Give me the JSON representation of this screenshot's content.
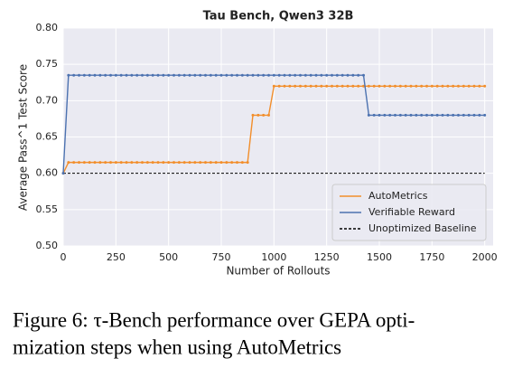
{
  "chart_data": {
    "type": "line",
    "title": "Tau Bench, Qwen3 32B",
    "x_label": "Number of Rollouts",
    "y_label": "Average Pass^1 Test Score",
    "x": [
      0,
      25,
      50,
      75,
      100,
      125,
      150,
      175,
      200,
      225,
      250,
      275,
      300,
      325,
      350,
      375,
      400,
      425,
      450,
      475,
      500,
      525,
      550,
      575,
      600,
      625,
      650,
      675,
      700,
      725,
      750,
      775,
      800,
      825,
      850,
      875,
      900,
      925,
      950,
      975,
      1000,
      1025,
      1050,
      1075,
      1100,
      1125,
      1150,
      1175,
      1200,
      1225,
      1250,
      1275,
      1300,
      1325,
      1350,
      1375,
      1400,
      1425,
      1450,
      1475,
      1500,
      1525,
      1550,
      1575,
      1600,
      1625,
      1650,
      1675,
      1700,
      1725,
      1750,
      1775,
      1800,
      1825,
      1850,
      1875,
      1900,
      1925,
      1950,
      1975,
      2000
    ],
    "series": [
      {
        "name": "AutoMetrics",
        "color": "#f28e2b",
        "values": [
          0.6,
          0.615,
          0.615,
          0.615,
          0.615,
          0.615,
          0.615,
          0.615,
          0.615,
          0.615,
          0.615,
          0.615,
          0.615,
          0.615,
          0.615,
          0.615,
          0.615,
          0.615,
          0.615,
          0.615,
          0.615,
          0.615,
          0.615,
          0.615,
          0.615,
          0.615,
          0.615,
          0.615,
          0.615,
          0.615,
          0.615,
          0.615,
          0.615,
          0.615,
          0.615,
          0.615,
          0.68,
          0.68,
          0.68,
          0.68,
          0.72,
          0.72,
          0.72,
          0.72,
          0.72,
          0.72,
          0.72,
          0.72,
          0.72,
          0.72,
          0.72,
          0.72,
          0.72,
          0.72,
          0.72,
          0.72,
          0.72,
          0.72,
          0.72,
          0.72,
          0.72,
          0.72,
          0.72,
          0.72,
          0.72,
          0.72,
          0.72,
          0.72,
          0.72,
          0.72,
          0.72,
          0.72,
          0.72,
          0.72,
          0.72,
          0.72,
          0.72,
          0.72,
          0.72,
          0.72,
          0.72
        ]
      },
      {
        "name": "Verifiable Reward",
        "color": "#4c72b0",
        "values": [
          0.6,
          0.735,
          0.735,
          0.735,
          0.735,
          0.735,
          0.735,
          0.735,
          0.735,
          0.735,
          0.735,
          0.735,
          0.735,
          0.735,
          0.735,
          0.735,
          0.735,
          0.735,
          0.735,
          0.735,
          0.735,
          0.735,
          0.735,
          0.735,
          0.735,
          0.735,
          0.735,
          0.735,
          0.735,
          0.735,
          0.735,
          0.735,
          0.735,
          0.735,
          0.735,
          0.735,
          0.735,
          0.735,
          0.735,
          0.735,
          0.735,
          0.735,
          0.735,
          0.735,
          0.735,
          0.735,
          0.735,
          0.735,
          0.735,
          0.735,
          0.735,
          0.735,
          0.735,
          0.735,
          0.735,
          0.735,
          0.735,
          0.735,
          0.68,
          0.68,
          0.68,
          0.68,
          0.68,
          0.68,
          0.68,
          0.68,
          0.68,
          0.68,
          0.68,
          0.68,
          0.68,
          0.68,
          0.68,
          0.68,
          0.68,
          0.68,
          0.68,
          0.68,
          0.68,
          0.68,
          0.68
        ]
      }
    ],
    "baseline": {
      "name": "Unoptimized Baseline",
      "value": 0.6,
      "color": "#000000"
    },
    "xlim": [
      0,
      2040
    ],
    "ylim": [
      0.5,
      0.8
    ],
    "xticks": [
      0,
      250,
      500,
      750,
      1000,
      1250,
      1500,
      1750,
      2000
    ],
    "yticks": [
      {
        "value": 0.5,
        "label": "0.50"
      },
      {
        "value": 0.55,
        "label": "0.55"
      },
      {
        "value": 0.6,
        "label": "0.60"
      },
      {
        "value": 0.65,
        "label": "0.65"
      },
      {
        "value": 0.7,
        "label": "0.70"
      },
      {
        "value": 0.75,
        "label": "0.75"
      },
      {
        "value": 0.8,
        "label": "0.80"
      }
    ],
    "grid": true,
    "legend": "lower right"
  },
  "caption": {
    "lines": [
      "Figure 6: τ-Bench performance over GEPA opti-",
      "mization steps when using AutoMetrics"
    ]
  }
}
